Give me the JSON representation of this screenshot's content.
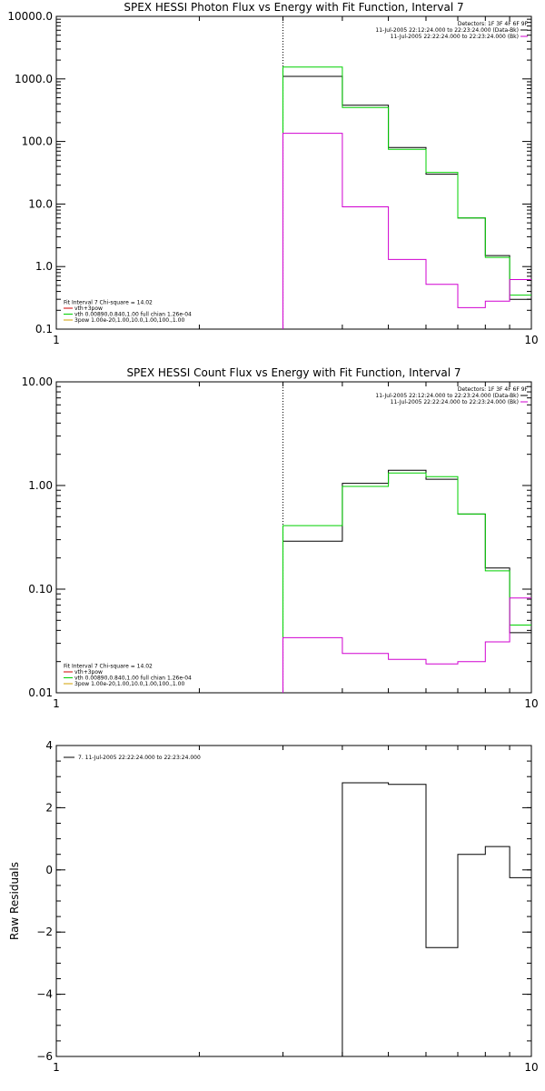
{
  "chart_data": [
    {
      "type": "line",
      "title": "SPEX HESSI Photon Flux vs Energy with Fit Function, Interval 7",
      "xlabel": "",
      "ylabel": "",
      "x_scale": "log",
      "y_scale": "log",
      "xlim": [
        1,
        10
      ],
      "ylim": [
        0.1,
        10000
      ],
      "x_ticks": [
        {
          "v": 1,
          "label": "1"
        },
        {
          "v": 10,
          "label": "10"
        }
      ],
      "y_ticks": [
        {
          "v": 0.1,
          "label": "0.1"
        },
        {
          "v": 1,
          "label": "1.0"
        },
        {
          "v": 10,
          "label": "10.0"
        },
        {
          "v": 100,
          "label": "100.0"
        },
        {
          "v": 1000,
          "label": "1000.0"
        },
        {
          "v": 10000,
          "label": "10000.0"
        }
      ],
      "vline_x": 3,
      "bin_edges": [
        3,
        4,
        5,
        6,
        7,
        8,
        9,
        10
      ],
      "series": [
        {
          "color": "#000000",
          "values": [
            1100,
            380,
            80,
            30,
            6,
            1.5,
            0.3
          ]
        },
        {
          "color": "#00d000",
          "values": [
            1550,
            350,
            75,
            32,
            6,
            1.4,
            0.35
          ]
        },
        {
          "color": "#d000d0",
          "values": [
            135,
            9,
            1.3,
            0.52,
            0.22,
            0.28,
            0.62
          ]
        }
      ],
      "legend_top": [
        {
          "text": "Detectors: 1F 3F 4F 6F 9F",
          "color": ""
        },
        {
          "text": "11-Jul-2005 22:12:24.000 to 22:23:24.000 (Data-Bk)",
          "color": "#000000"
        },
        {
          "text": "11-Jul-2005 22:22:24.000 to 22:23:24.000 (Bk)",
          "color": "#d000d0"
        }
      ],
      "legend_bottom": [
        {
          "text": "Fit Interval 7   Chi-square = 14.02",
          "color": ""
        },
        {
          "text": "vth+3pow",
          "color": "#d00000"
        },
        {
          "text": "vth 0.00890,0.840,1.00  full chian 1.26e-04",
          "color": "#00d000"
        },
        {
          "text": "3pow 1.00e-20,1.00,10.0,1.00,100.,1.00",
          "color": "#d0a000"
        }
      ]
    },
    {
      "type": "line",
      "title": "SPEX HESSI Count Flux vs Energy with Fit Function, Interval 7",
      "xlabel": "",
      "ylabel": "",
      "x_scale": "log",
      "y_scale": "log",
      "xlim": [
        1,
        10
      ],
      "ylim": [
        0.01,
        10
      ],
      "x_ticks": [
        {
          "v": 1,
          "label": "1"
        },
        {
          "v": 10,
          "label": "10"
        }
      ],
      "y_ticks": [
        {
          "v": 0.01,
          "label": "0.01"
        },
        {
          "v": 0.1,
          "label": "0.10"
        },
        {
          "v": 1,
          "label": "1.00"
        },
        {
          "v": 10,
          "label": "10.00"
        }
      ],
      "vline_x": 3,
      "bin_edges": [
        3,
        4,
        5,
        6,
        7,
        8,
        9,
        10
      ],
      "series": [
        {
          "color": "#000000",
          "values": [
            0.29,
            1.05,
            1.4,
            1.15,
            0.53,
            0.16,
            0.038
          ]
        },
        {
          "color": "#00d000",
          "values": [
            0.41,
            0.98,
            1.32,
            1.22,
            0.53,
            0.15,
            0.045
          ]
        },
        {
          "color": "#d000d0",
          "values": [
            0.034,
            0.024,
            0.021,
            0.019,
            0.02,
            0.031,
            0.082
          ]
        }
      ],
      "legend_top": [
        {
          "text": "Detectors: 1F 3F 4F 6F 9F",
          "color": ""
        },
        {
          "text": "11-Jul-2005 22:12:24.000 to 22:23:24.000 (Data-Bk)",
          "color": "#000000"
        },
        {
          "text": "11-Jul-2005 22:22:24.000 to 22:23:24.000 (Bk)",
          "color": "#d000d0"
        }
      ],
      "legend_bottom": [
        {
          "text": "Fit Interval 7   Chi-square = 14.02",
          "color": ""
        },
        {
          "text": "vth+3pow",
          "color": "#d00000"
        },
        {
          "text": "vth 0.00890,0.840,1.00  full chian 1.26e-04",
          "color": "#00d000"
        },
        {
          "text": "3pow 1.00e-20,1.00,10.0,1.00,100.,1.00",
          "color": "#d0a000"
        }
      ]
    },
    {
      "type": "line",
      "title": "",
      "xlabel": "",
      "ylabel": "Raw Residuals",
      "x_scale": "log",
      "y_scale": "linear",
      "xlim": [
        1,
        10
      ],
      "ylim": [
        -6,
        4
      ],
      "x_ticks": [
        {
          "v": 1,
          "label": "1"
        },
        {
          "v": 10,
          "label": "10"
        }
      ],
      "y_ticks": [
        {
          "v": -6,
          "label": "−6"
        },
        {
          "v": -4,
          "label": "−4"
        },
        {
          "v": -2,
          "label": "−2"
        },
        {
          "v": 0,
          "label": "0"
        },
        {
          "v": 2,
          "label": "2"
        },
        {
          "v": 4,
          "label": "4"
        }
      ],
      "bin_edges": [
        3,
        4,
        5,
        6,
        7,
        8,
        9,
        10
      ],
      "series": [
        {
          "color": "#000000",
          "values": [
            -6.0,
            2.8,
            2.75,
            -2.5,
            0.5,
            0.75,
            -0.25
          ]
        }
      ],
      "legend_top": [
        {
          "text": "7. 11-Jul-2005 22:22:24.000 to 22:23:24.000",
          "color": "#000000"
        }
      ]
    }
  ]
}
